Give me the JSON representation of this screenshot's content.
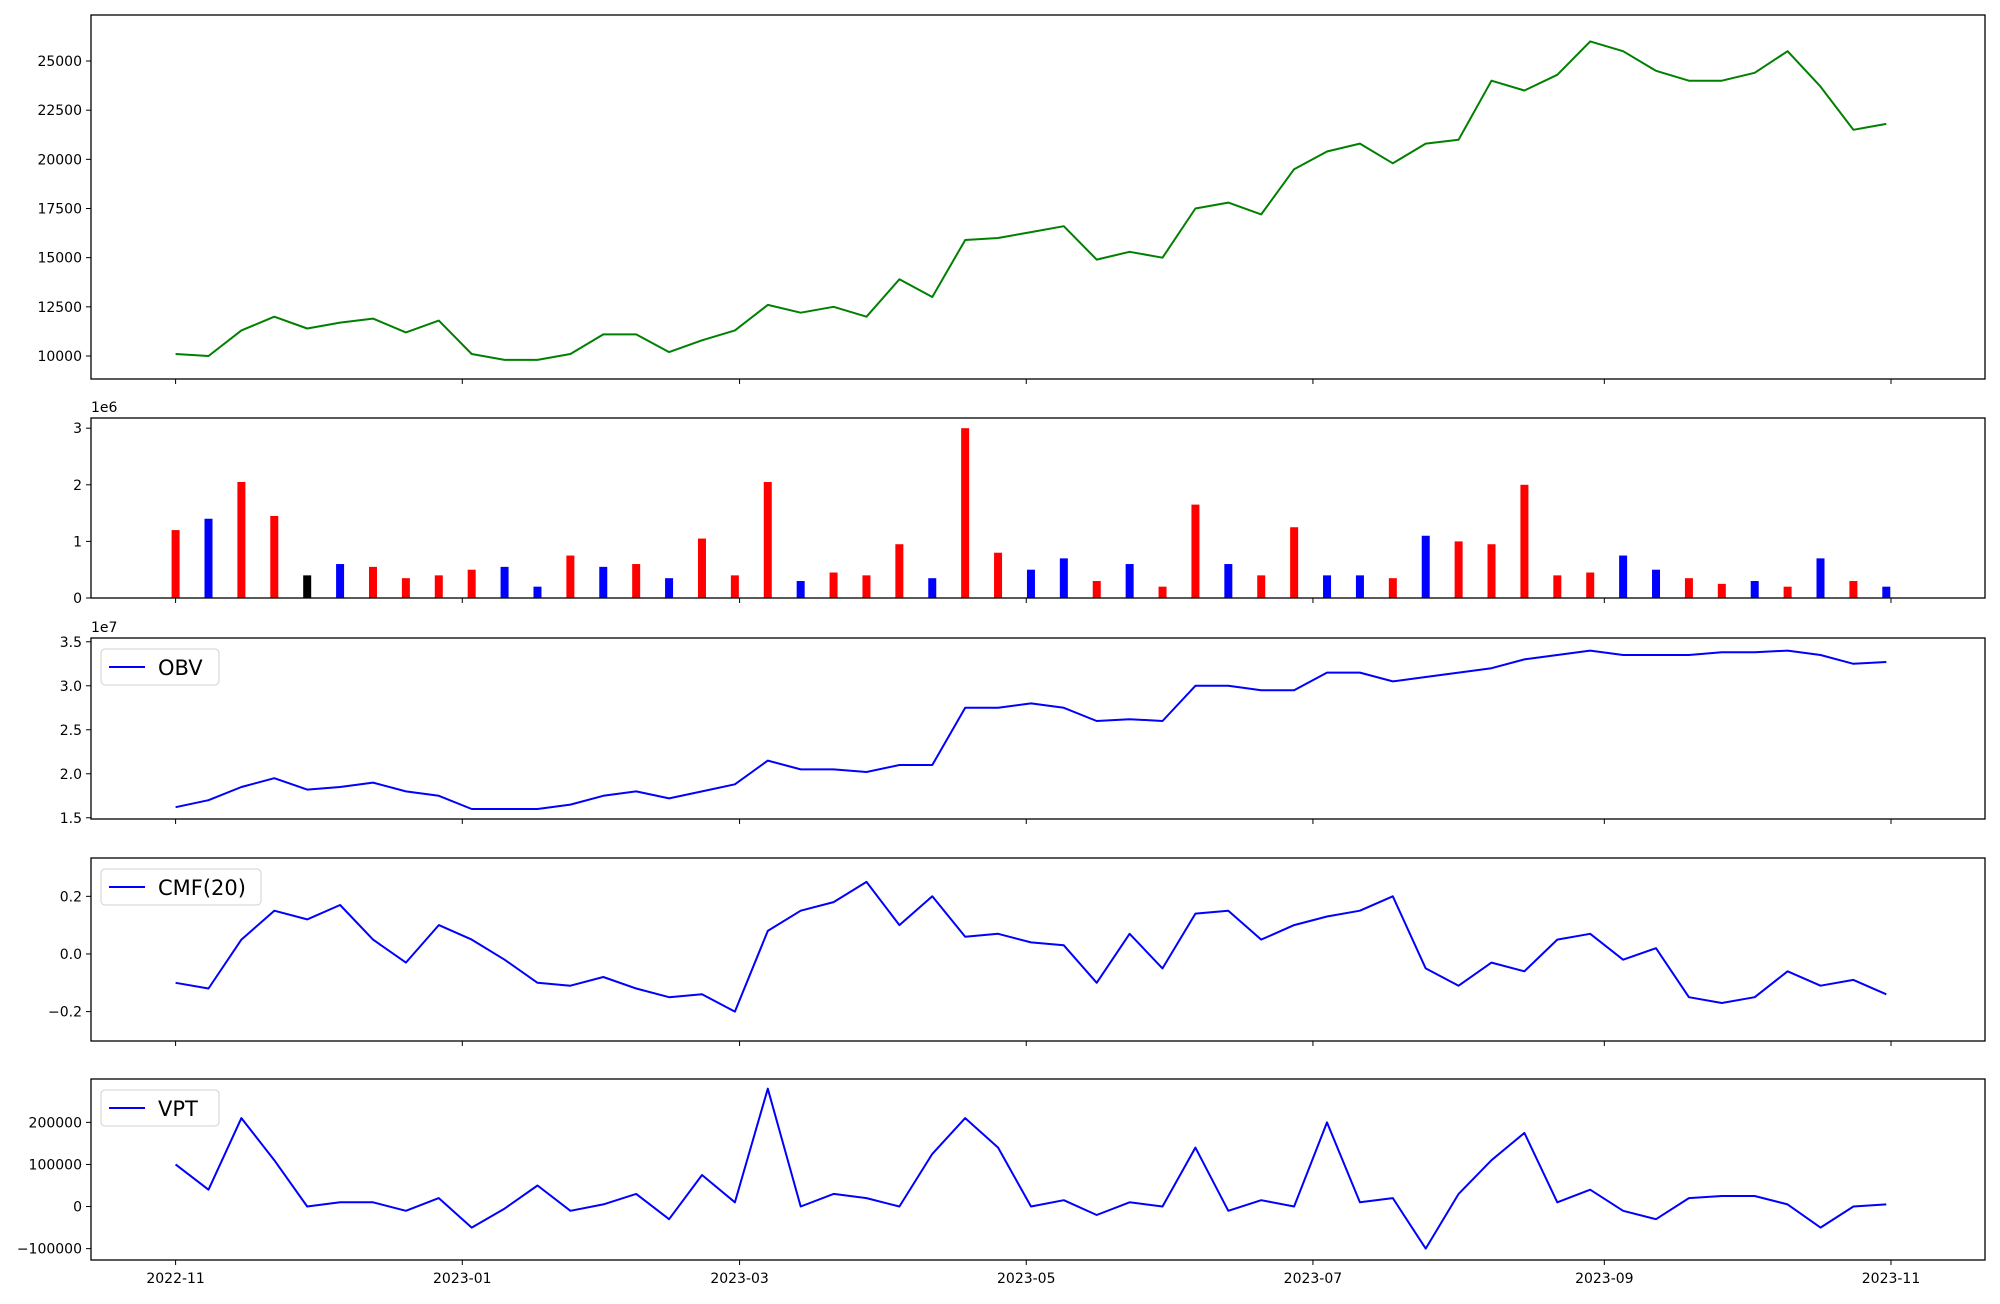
{
  "chart_data": [
    {
      "type": "line",
      "panel": "price",
      "color": "#008000",
      "xlim": [
        "2022-10-14",
        "2023-11-21"
      ],
      "ylim": [
        8830,
        27340
      ],
      "yticks": [
        10000,
        12500,
        15000,
        17500,
        20000,
        22500,
        25000
      ],
      "ytick_labels": [
        "10000",
        "12500",
        "15000",
        "17500",
        "20000",
        "22500",
        "25000"
      ],
      "values": [
        10100,
        10000,
        11300,
        12000,
        11400,
        11700,
        11900,
        11200,
        11800,
        10100,
        9800,
        9800,
        10100,
        11100,
        11100,
        10200,
        10800,
        11300,
        12600,
        12200,
        12500,
        12000,
        13900,
        13000,
        15900,
        16000,
        16300,
        16600,
        14900,
        15300,
        15000,
        17500,
        17800,
        17200,
        19500,
        20400,
        20800,
        19800,
        20800,
        21000,
        24000,
        23500,
        24300,
        26000,
        25500,
        24500,
        24000,
        24000,
        24400,
        25500,
        23700,
        21500,
        21800
      ]
    },
    {
      "type": "bar",
      "panel": "volume",
      "offset_label": "1e6",
      "ylim": [
        0,
        3.18
      ],
      "yticks": [
        0,
        1,
        2,
        3
      ],
      "ytick_labels": [
        "0",
        "1",
        "2",
        "3"
      ],
      "color_map": {
        "up": "#ff0000",
        "down": "#0000ff",
        "flat": "#000000"
      },
      "values": [
        1.2,
        1.4,
        2.05,
        1.45,
        0.4,
        0.6,
        0.55,
        0.35,
        0.4,
        0.5,
        0.55,
        0.2,
        0.75,
        0.55,
        0.6,
        0.35,
        1.05,
        0.4,
        2.05,
        0.3,
        0.45,
        0.4,
        0.95,
        0.35,
        3.0,
        0.8,
        0.5,
        0.7,
        0.3,
        0.6,
        0.2,
        1.65,
        0.6,
        0.4,
        1.25,
        0.4,
        0.4,
        0.35,
        1.1,
        1.0,
        0.95,
        2.0,
        0.4,
        0.45,
        0.75,
        0.5,
        0.35,
        0.25,
        0.3,
        0.2,
        0.7,
        0.3,
        0.2
      ],
      "colors": [
        "up",
        "down",
        "up",
        "up",
        "flat",
        "down",
        "up",
        "up",
        "up",
        "up",
        "down",
        "down",
        "up",
        "down",
        "up",
        "down",
        "up",
        "up",
        "up",
        "down",
        "up",
        "up",
        "up",
        "down",
        "up",
        "up",
        "down",
        "down",
        "up",
        "down",
        "up",
        "up",
        "down",
        "up",
        "up",
        "down",
        "down",
        "up",
        "down",
        "up",
        "up",
        "up",
        "up",
        "up",
        "down",
        "down",
        "up",
        "up",
        "down",
        "up",
        "down",
        "up",
        "down"
      ]
    },
    {
      "type": "line",
      "panel": "obv",
      "color": "#0000ff",
      "legend": "OBV",
      "legend_position": "top-left",
      "offset_label": "1e7",
      "ylim": [
        1.486,
        3.543
      ],
      "yticks": [
        1.5,
        2.0,
        2.5,
        3.0,
        3.5
      ],
      "ytick_labels": [
        "1.5",
        "2.0",
        "2.5",
        "3.0",
        "3.5"
      ],
      "values": [
        1.62,
        1.7,
        1.85,
        1.95,
        1.82,
        1.85,
        1.9,
        1.8,
        1.75,
        1.6,
        1.6,
        1.6,
        1.65,
        1.75,
        1.8,
        1.72,
        1.8,
        1.88,
        2.15,
        2.05,
        2.05,
        2.02,
        2.1,
        2.1,
        2.75,
        2.75,
        2.8,
        2.75,
        2.6,
        2.62,
        2.6,
        3.0,
        3.0,
        2.95,
        2.95,
        3.15,
        3.15,
        3.05,
        3.1,
        3.15,
        3.2,
        3.3,
        3.35,
        3.4,
        3.35,
        3.35,
        3.35,
        3.38,
        3.38,
        3.4,
        3.35,
        3.25,
        3.27
      ]
    },
    {
      "type": "line",
      "panel": "cmf",
      "color": "#0000ff",
      "legend": "CMF(20)",
      "legend_position": "top-left",
      "ylim": [
        -0.302,
        0.333
      ],
      "yticks": [
        -0.2,
        0.0,
        0.2
      ],
      "ytick_labels": [
        "−0.2",
        "0.0",
        "0.2"
      ],
      "values": [
        -0.1,
        -0.12,
        0.05,
        0.15,
        0.12,
        0.17,
        0.05,
        -0.03,
        0.1,
        0.05,
        -0.02,
        -0.1,
        -0.11,
        -0.08,
        -0.12,
        -0.15,
        -0.14,
        -0.2,
        0.08,
        0.15,
        0.18,
        0.25,
        0.1,
        0.2,
        0.06,
        0.07,
        0.04,
        0.03,
        -0.1,
        0.07,
        -0.05,
        0.14,
        0.15,
        0.05,
        0.1,
        0.13,
        0.15,
        0.2,
        -0.05,
        -0.11,
        -0.03,
        -0.06,
        0.05,
        0.07,
        -0.02,
        0.02,
        -0.15,
        -0.17,
        -0.15,
        -0.06,
        -0.11,
        -0.09,
        -0.14
      ]
    },
    {
      "type": "line",
      "panel": "vpt",
      "color": "#0000ff",
      "legend": "VPT",
      "legend_position": "top-left",
      "ylim": [
        -127000,
        303000
      ],
      "yticks": [
        -100000,
        0,
        100000,
        200000
      ],
      "ytick_labels": [
        "−100000",
        "0",
        "100000",
        "200000"
      ],
      "xticks": [
        "2022-11-01",
        "2023-01-01",
        "2023-03-01",
        "2023-05-01",
        "2023-07-01",
        "2023-09-01",
        "2023-11-01"
      ],
      "xtick_labels": [
        "2022-11",
        "2023-01",
        "2023-03",
        "2023-05",
        "2023-07",
        "2023-09",
        "2023-11"
      ],
      "values": [
        100000,
        40000,
        210000,
        110000,
        0,
        10000,
        10000,
        -10000,
        20000,
        -50000,
        -5000,
        50000,
        -10000,
        5000,
        30000,
        -30000,
        75000,
        10000,
        280000,
        0,
        30000,
        20000,
        0,
        125000,
        210000,
        140000,
        0,
        15000,
        -20000,
        10000,
        0,
        140000,
        -10000,
        15000,
        0,
        200000,
        10000,
        20000,
        -100000,
        30000,
        110000,
        175000,
        10000,
        40000,
        -10000,
        -30000,
        20000,
        25000,
        25000,
        5000,
        -50000,
        0,
        5000
      ]
    }
  ],
  "dates_start": "2022-11-01",
  "dates_step_days": 7
}
